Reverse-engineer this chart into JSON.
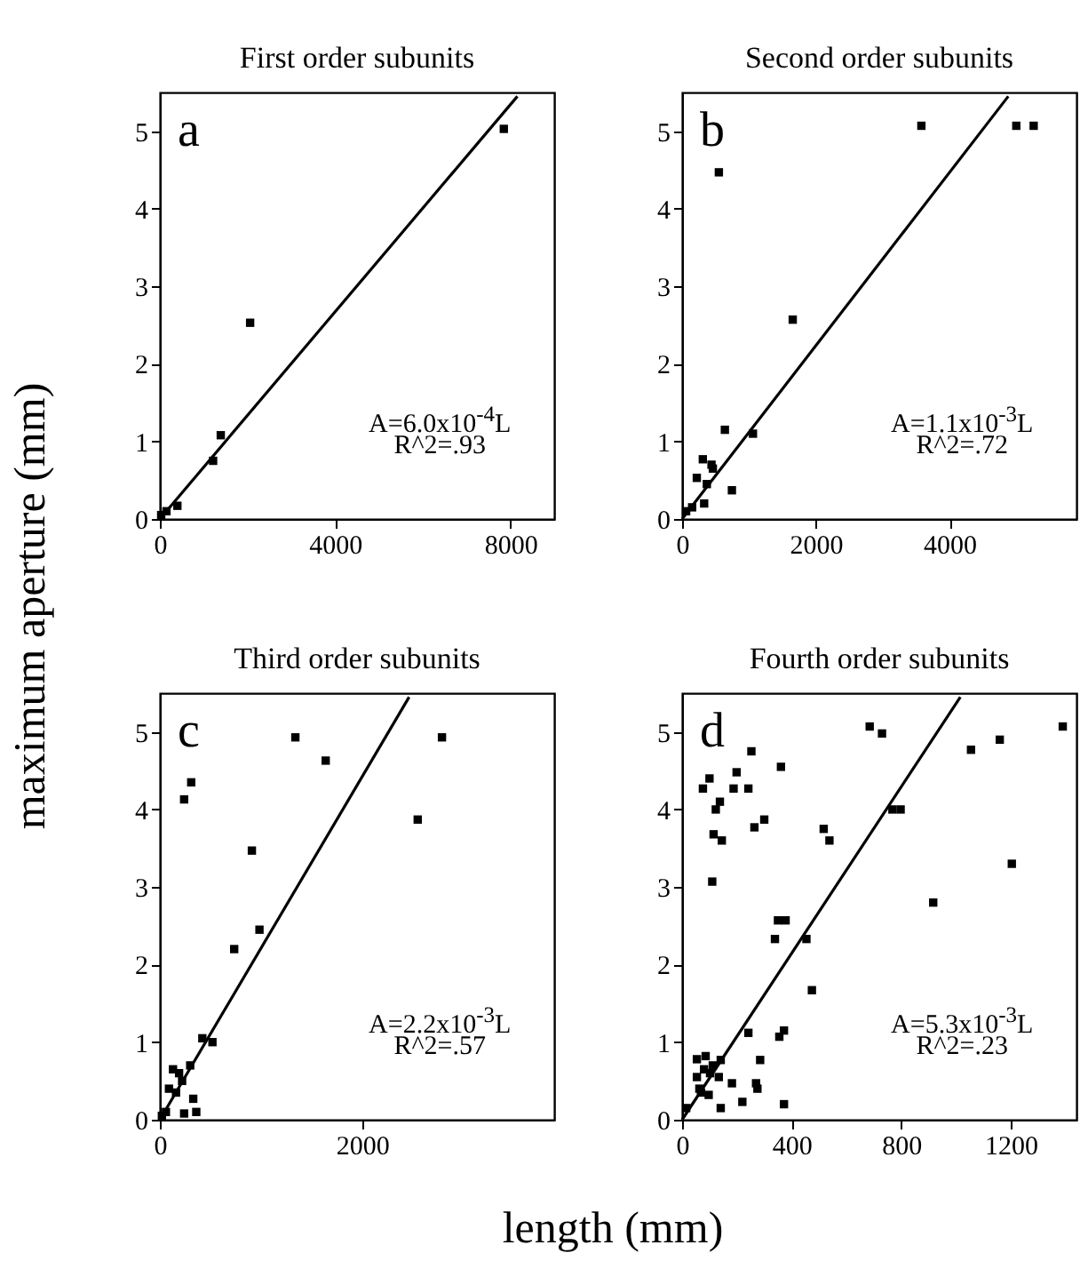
{
  "chart_data": [
    {
      "type": "scatter",
      "title": "First order subunits",
      "ylabel": "maximum aperture (mm)",
      "xlim": [
        0,
        9000
      ],
      "ylim": [
        0,
        5.5
      ],
      "xticks": [
        0,
        4000,
        8000
      ],
      "yticks": [
        0,
        1,
        2,
        3,
        4,
        5
      ],
      "grid": false,
      "annotations": [
        "a",
        "A=6.0x10$^{-4}$L",
        "R^2=.93"
      ],
      "series": [
        {
          "marker": "square",
          "color": "#000000",
          "x": [
            30,
            150,
            400,
            1215,
            1390,
            2060,
            7850
          ],
          "values": [
            0.05,
            0.1,
            0.17,
            0.75,
            1.08,
            2.53,
            5.03
          ]
        },
        {
          "type": "line",
          "color": "#000000",
          "line_style": "solid",
          "x": [
            0,
            8160
          ],
          "values": [
            0,
            5.45
          ]
        }
      ]
    },
    {
      "type": "scatter",
      "title": "Second order subunits",
      "xlim": [
        0,
        5900
      ],
      "ylim": [
        0,
        5.5
      ],
      "xticks": [
        0,
        2000,
        4000
      ],
      "yticks": [
        0,
        1,
        2,
        3,
        4,
        5
      ],
      "grid": false,
      "annotations": [
        "b",
        "A=1.1x10$^{-3}$L",
        "R^2=.72"
      ],
      "series": [
        {
          "marker": "square",
          "color": "#000000",
          "x": [
            3580,
            5000,
            5260,
            550,
            1655,
            640,
            1060,
            745,
            310,
            440,
            460,
            220,
            370,
            330,
            150,
            60
          ],
          "values": [
            5.07,
            5.07,
            5.07,
            4.47,
            2.57,
            1.15,
            1.1,
            0.37,
            0.77,
            0.7,
            0.65,
            0.53,
            0.45,
            0.2,
            0.15,
            0.1
          ]
        },
        {
          "type": "line",
          "color": "#000000",
          "line_style": "solid",
          "x": [
            0,
            4880
          ],
          "values": [
            0,
            5.45
          ]
        }
      ]
    },
    {
      "type": "scatter",
      "title": "Third order subunits",
      "xlabel": "length (mm)",
      "xlim": [
        0,
        3900
      ],
      "ylim": [
        0,
        5.5
      ],
      "xticks": [
        0,
        2000
      ],
      "yticks": [
        0,
        1,
        2,
        3,
        4,
        5
      ],
      "grid": false,
      "annotations": [
        "c",
        "A=2.2x10$^{-3}$L",
        "R^2=.57"
      ],
      "series": [
        {
          "marker": "square",
          "color": "#000000",
          "x": [
            1340,
            1640,
            2790,
            2550,
            240,
            310,
            910,
            735,
            985,
            420,
            520,
            130,
            300,
            190,
            220,
            90,
            160,
            330,
            360,
            240,
            60,
            20
          ],
          "values": [
            4.93,
            4.63,
            4.93,
            3.87,
            4.13,
            4.35,
            3.47,
            2.2,
            2.45,
            1.05,
            1.0,
            0.65,
            0.7,
            0.6,
            0.5,
            0.4,
            0.35,
            0.27,
            0.1,
            0.08,
            0.1,
            0.05
          ]
        },
        {
          "type": "line",
          "color": "#000000",
          "line_style": "solid",
          "x": [
            0,
            2465
          ],
          "values": [
            0,
            5.45
          ]
        }
      ]
    },
    {
      "type": "scatter",
      "title": "Fourth order subunits",
      "xlim": [
        0,
        1440
      ],
      "ylim": [
        0,
        5.5
      ],
      "xticks": [
        0,
        400,
        800,
        1200
      ],
      "yticks": [
        0,
        1,
        2,
        3,
        4,
        5
      ],
      "grid": false,
      "annotations": [
        "d",
        "A=5.3x10$^{-3}$L",
        "R^2=.23"
      ],
      "series": [
        {
          "marker": "square",
          "color": "#000000",
          "x": [
            685,
            730,
            1160,
            1390,
            1055,
            253,
            361,
            199,
            100,
            76,
            188,
            242,
            138,
            123,
            300,
            264,
            115,
            145,
            110,
            517,
            538,
            768,
            798,
            1204,
            917,
            350,
            378,
            339,
            454,
            474,
            242,
            355,
            372,
            285,
            270,
            275,
            220,
            372,
            141,
            141,
            134,
            182,
            86,
            54,
            80,
            102,
            54,
            63,
            97,
            69,
            15,
            112
          ],
          "values": [
            5.07,
            4.98,
            4.9,
            5.07,
            4.77,
            4.75,
            4.55,
            4.48,
            4.4,
            4.27,
            4.27,
            4.27,
            4.1,
            4.0,
            3.87,
            3.77,
            3.68,
            3.6,
            3.07,
            3.75,
            3.6,
            4.0,
            4.0,
            3.3,
            2.8,
            2.57,
            2.57,
            2.33,
            2.33,
            1.67,
            1.12,
            1.07,
            1.15,
            0.77,
            0.47,
            0.4,
            0.23,
            0.2,
            0.15,
            0.77,
            0.55,
            0.47,
            0.82,
            0.78,
            0.65,
            0.6,
            0.55,
            0.4,
            0.32,
            0.35,
            0.15,
            0.7
          ]
        },
        {
          "type": "line",
          "color": "#000000",
          "line_style": "solid",
          "x": [
            0,
            1016
          ],
          "values": [
            0,
            5.45
          ]
        }
      ]
    }
  ]
}
